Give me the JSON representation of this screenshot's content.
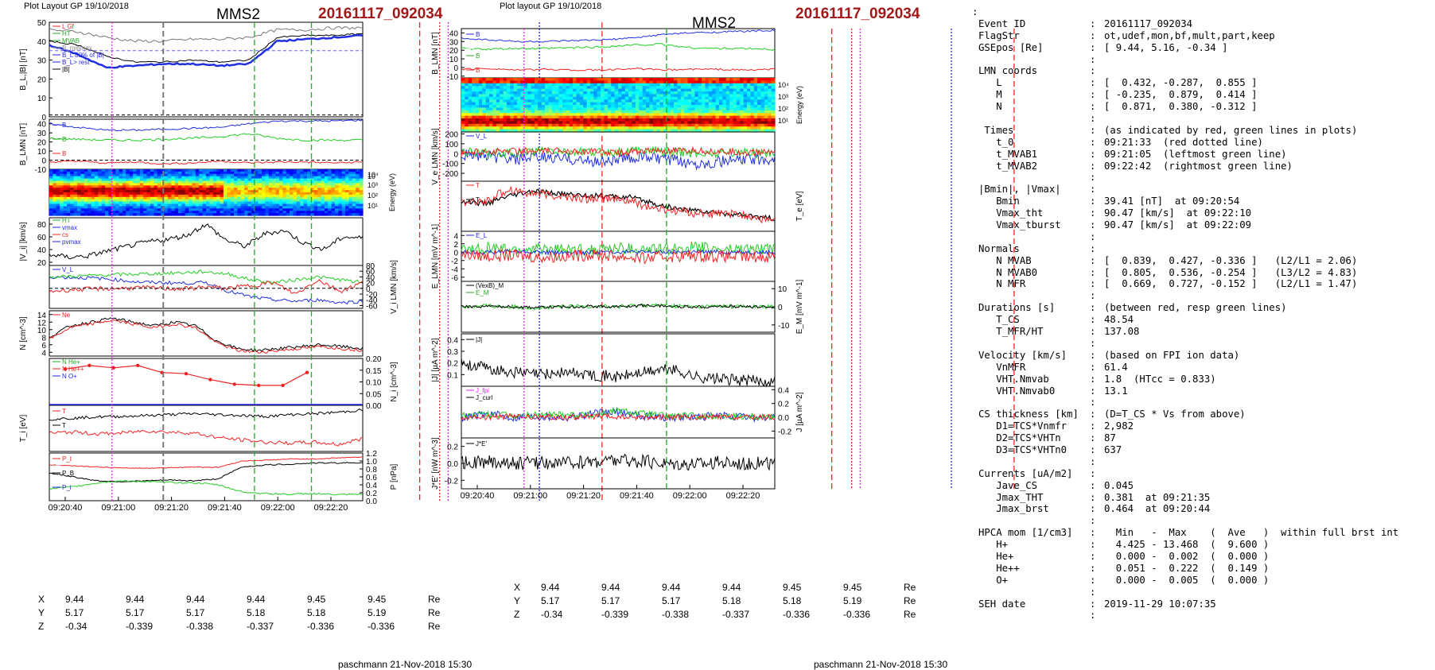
{
  "left": {
    "header": "Plot Layout GP 19/10/2018",
    "spacecraft": "MMS2",
    "event_id": "20161117_092034",
    "footer": "paschmann 21-Nov-2018 15:30",
    "time_ticks": [
      "09:20:40",
      "09:21:00",
      "09:21:20",
      "09:21:40",
      "09:22:00",
      "09:22:20"
    ],
    "pos_rows": [
      {
        "axis": "X",
        "values": [
          "9.44",
          "9.44",
          "9.44",
          "9.44",
          "9.45",
          "9.45"
        ],
        "unit": "Re"
      },
      {
        "axis": "Y",
        "values": [
          "5.17",
          "5.17",
          "5.17",
          "5.18",
          "5.18",
          "5.19"
        ],
        "unit": "Re"
      },
      {
        "axis": "Z",
        "values": [
          "-0.34",
          "-0.339",
          "-0.338",
          "-0.337",
          "-0.336",
          "-0.336"
        ],
        "unit": "Re"
      }
    ]
  },
  "mid": {
    "header": "Plot layout GP 19/10/2018",
    "spacecraft": "MMS2",
    "event_id": "20161117_092034",
    "footer": "paschmann 21-Nov-2018 15:30",
    "time_ticks": [
      "09:20:40",
      "09:21:00",
      "09:21:20",
      "09:21:40",
      "09:22:00",
      "09:22:20"
    ],
    "pos_rows": [
      {
        "axis": "X",
        "values": [
          "9.44",
          "9.44",
          "9.44",
          "9.44",
          "9.45",
          "9.45"
        ],
        "unit": "Re"
      },
      {
        "axis": "Y",
        "values": [
          "5.17",
          "5.17",
          "5.17",
          "5.18",
          "5.18",
          "5.19"
        ],
        "unit": "Re"
      },
      {
        "axis": "Z",
        "values": [
          "-0.34",
          "-0.339",
          "-0.338",
          "-0.337",
          "-0.336",
          "-0.336"
        ],
        "unit": "Re"
      }
    ]
  },
  "info_rows": [
    {
      "k": "",
      "v": ""
    },
    {
      "k": "Event ID",
      "v": "20161117_092034"
    },
    {
      "k": "FlagStr",
      "v": "ot,udef,mon,bf,mult,part,keep"
    },
    {
      "k": "GSEpos [Re]",
      "v": "[ 9.44, 5.16, -0.34 ]"
    },
    {
      "k": "",
      "v": ""
    },
    {
      "k": "LMN coords",
      "v": ""
    },
    {
      "k": "   L",
      "v": "[  0.432, -0.287,  0.855 ]"
    },
    {
      "k": "   M",
      "v": "[ -0.235,  0.879,  0.414 ]"
    },
    {
      "k": "   N",
      "v": "[  0.871,  0.380, -0.312 ]"
    },
    {
      "k": "",
      "v": ""
    },
    {
      "k": " Times",
      "v": "(as indicated by red, green lines in plots)"
    },
    {
      "k": "   t_0",
      "v": "09:21:33  (red dotted line)"
    },
    {
      "k": "   t_MVAB1",
      "v": "09:21:05  (leftmost green line)"
    },
    {
      "k": "   t_MVAB2",
      "v": "09:22:42  (rightmost green line)"
    },
    {
      "k": "",
      "v": ""
    },
    {
      "k": "|Bmin|, |Vmax|",
      "v": ""
    },
    {
      "k": "   Bmin",
      "v": "39.41 [nT]  at 09:20:54"
    },
    {
      "k": "   Vmax_tht",
      "v": "90.47 [km/s]  at 09:22:10"
    },
    {
      "k": "   Vmax_tburst",
      "v": "90.47 [km/s]  at 09:22:09"
    },
    {
      "k": "",
      "v": ""
    },
    {
      "k": "Normals",
      "v": ""
    },
    {
      "k": "   N MVAB",
      "v": "[  0.839,  0.427, -0.336 ]   (L2/L1 = 2.06)"
    },
    {
      "k": "   N MVAB0",
      "v": "[  0.805,  0.536, -0.254 ]   (L3/L2 = 4.83)"
    },
    {
      "k": "   N MFR",
      "v": "[  0.669,  0.727, -0.152 ]   (L2/L1 = 1.47)"
    },
    {
      "k": "",
      "v": ""
    },
    {
      "k": "Durations [s]",
      "v": "(between red, resp green lines)"
    },
    {
      "k": "   T_CS",
      "v": "48.54"
    },
    {
      "k": "   T_MFR/HT",
      "v": "137.08"
    },
    {
      "k": "",
      "v": ""
    },
    {
      "k": "Velocity [km/s]",
      "v": "(based on FPI ion data)"
    },
    {
      "k": "   VnMFR",
      "v": "61.4"
    },
    {
      "k": "   VHT.Nmvab",
      "v": "1.8  (HTcc = 0.833)"
    },
    {
      "k": "   VHT.Nmvab0",
      "v": "13.1"
    },
    {
      "k": "",
      "v": ""
    },
    {
      "k": "CS thickness [km]",
      "v": "(D=T_CS * Vs from above)"
    },
    {
      "k": "   D1=TCS*Vnmfr",
      "v": "2,982"
    },
    {
      "k": "   D2=TCS*VHTn",
      "v": "87"
    },
    {
      "k": "   D3=TCS*VHTn0",
      "v": "637"
    },
    {
      "k": "",
      "v": ""
    },
    {
      "k": "Currents [uA/m2]",
      "v": ""
    },
    {
      "k": "   Jave_CS",
      "v": "0.045"
    },
    {
      "k": "   Jmax_THT",
      "v": "0.381  at 09:21:35"
    },
    {
      "k": "   Jmax_brst",
      "v": "0.464  at 09:20:44"
    },
    {
      "k": "",
      "v": ""
    },
    {
      "k": "HPCA mom [1/cm3]",
      "v": "  Min   -  Max    (  Ave   )  within full brst int"
    },
    {
      "k": "   H+",
      "v": "  4.425 - 13.468  (  9.600 )"
    },
    {
      "k": "   He+",
      "v": "  0.000 -  0.002  (  0.000 )"
    },
    {
      "k": "   He++",
      "v": "  0.051 -  0.222  (  0.149 )"
    },
    {
      "k": "   O+",
      "v": "  0.000 -  0.005  (  0.000 )"
    },
    {
      "k": "",
      "v": ""
    },
    {
      "k": "SEH date",
      "v": "2019-11-29 10:07:35"
    },
    {
      "k": "",
      "v": ""
    }
  ],
  "chart_data": [
    {
      "type": "line",
      "panel": "left-B",
      "ylabel": "B_L,|B| [nT]",
      "yticks": [
        "0",
        "10",
        "20",
        "30",
        "40",
        "50"
      ],
      "ylim": [
        0,
        50
      ],
      "legend": [
        "L Gf",
        "HT",
        "MVAB",
        "B_minmax",
        "B_L 80% of |B|",
        "B_L> rest",
        "|B|"
      ],
      "series": [
        {
          "name": "|B|",
          "values": [
            39,
            35,
            30,
            28,
            29,
            29,
            28,
            29,
            42,
            43,
            43,
            44
          ]
        },
        {
          "name": "B_L",
          "values": [
            38,
            33,
            26,
            27,
            28,
            28,
            27,
            28,
            40,
            41,
            42,
            43
          ]
        }
      ]
    },
    {
      "type": "line",
      "panel": "left-BLMN",
      "ylabel": "B_LMN [nT]",
      "yticks": [
        "-10",
        "0",
        "10",
        "20",
        "30",
        "40"
      ],
      "ylim": [
        -10,
        45
      ],
      "legend": [
        "B_L",
        "B_M",
        "B_N"
      ]
    },
    {
      "type": "heatmap",
      "panel": "left-spec",
      "ylabel": "Energy (eV)",
      "yticks": [
        "10^1",
        "10^2",
        "10^3",
        "10^4"
      ]
    },
    {
      "type": "line",
      "panel": "left-Vi",
      "ylabel": "|V_i| [km/s]",
      "yticks": [
        "20",
        "40",
        "60",
        "80"
      ],
      "ylim": [
        15,
        90
      ],
      "legend": [
        "HT",
        "vmax",
        "cs",
        "pvmax"
      ]
    },
    {
      "type": "line",
      "panel": "left-ViLMN",
      "ylabel": "V_i LMN [km/s]",
      "yticks": [
        "-60",
        "-40",
        "-20",
        "0",
        "20",
        "40",
        "60",
        "80"
      ],
      "ylim": [
        -70,
        80
      ],
      "legend": [
        "V_L"
      ]
    },
    {
      "type": "line",
      "panel": "left-N",
      "ylabel": "N [cm^-3]",
      "yticks": [
        "4",
        "6",
        "8",
        "10",
        "12",
        "14"
      ],
      "ylim": [
        3,
        15
      ],
      "legend": [
        "Ne"
      ]
    },
    {
      "type": "line",
      "panel": "left-Ni",
      "ylabel": "N_i [cm^-3]",
      "yticks": [
        "0.00",
        "0.05",
        "0.10",
        "0.15",
        "0.20"
      ],
      "ylim": [
        0,
        0.2
      ],
      "legend": [
        "N He+",
        "N He++",
        "N O+"
      ],
      "series": [
        {
          "name": "N He++",
          "values": [
            0.155,
            0.17,
            0.16,
            0.17,
            0.14,
            0.135,
            0.11,
            0.09,
            0.085,
            0.085,
            0.14
          ]
        }
      ]
    },
    {
      "type": "line",
      "panel": "left-Ti",
      "ylabel": "T_i [eV]",
      "legend": [
        "T_||",
        "T_perp"
      ]
    },
    {
      "type": "line",
      "panel": "left-P",
      "ylabel": "P [nPa]",
      "yticks": [
        "0.0",
        "0.2",
        "0.4",
        "0.6",
        "0.8",
        "1.0",
        "1.2"
      ],
      "ylim": [
        0,
        1.2
      ],
      "legend": [
        "P_t",
        "P_B",
        "P_i"
      ]
    },
    {
      "type": "line",
      "panel": "mid-BLMN",
      "ylabel": "B_LMN [nT]",
      "yticks": [
        "-10",
        "0",
        "10",
        "20",
        "30",
        "40"
      ],
      "ylim": [
        -12,
        45
      ],
      "legend": [
        "B_L",
        "B_M",
        "B_N"
      ]
    },
    {
      "type": "heatmap",
      "panel": "mid-spec",
      "ylabel": "Energy (eV)",
      "yticks": [
        "10^1",
        "10^2",
        "10^3",
        "10^4"
      ]
    },
    {
      "type": "line",
      "panel": "mid-Ve",
      "ylabel": "V_e LMN [km/s]",
      "yticks": [
        "-200",
        "-100",
        "0",
        "100",
        "200"
      ],
      "ylim": [
        -280,
        220
      ],
      "legend": [
        "V_L"
      ]
    },
    {
      "type": "line",
      "panel": "mid-Te",
      "ylabel": "T_e [eV]",
      "legend": [
        "T_||",
        "T_perp"
      ]
    },
    {
      "type": "line",
      "panel": "mid-E",
      "ylabel": "E_LMN [mV m^-1]",
      "yticks": [
        "-6",
        "-4",
        "-2",
        "0",
        "2",
        "4"
      ],
      "ylim": [
        -7,
        5
      ],
      "legend": [
        "E_L"
      ]
    },
    {
      "type": "line",
      "panel": "mid-EM",
      "ylabel": "E_M [mV m^-1]",
      "yticks": [
        "-10",
        "0",
        "10"
      ],
      "ylim": [
        -14,
        14
      ],
      "legend": [
        "(VexB)_M",
        "E_M"
      ]
    },
    {
      "type": "line",
      "panel": "mid-J",
      "ylabel": "|J| [µA m^-2]",
      "yticks": [
        "0.1",
        "0.2",
        "0.3",
        "0.4"
      ],
      "ylim": [
        0,
        0.45
      ],
      "legend": [
        "|J|"
      ]
    },
    {
      "type": "line",
      "panel": "mid-JLMN",
      "ylabel": "J [µA m^-2]",
      "yticks": [
        "-0.2",
        "0.0",
        "0.2",
        "0.4"
      ],
      "ylim": [
        -0.3,
        0.45
      ],
      "legend": [
        "J_fpi",
        "J_curl"
      ]
    },
    {
      "type": "line",
      "panel": "mid-JE",
      "ylabel": "J*E' [nW m^-3]",
      "yticks": [
        "-0.2",
        "0.0",
        "0.2"
      ],
      "ylim": [
        -0.3,
        0.3
      ],
      "legend": [
        "J*E'"
      ]
    }
  ]
}
